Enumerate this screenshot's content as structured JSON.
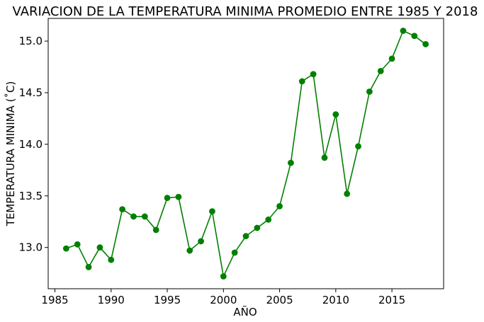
{
  "chart_data": {
    "type": "line",
    "title": "VARIACION DE LA TEMPERATURA MINIMA PROMEDIO ENTRE 1985 Y 2018",
    "xlabel": "AÑO",
    "ylabel": "TEMPERATURA MINIMA (˚C)",
    "xlim": [
      1984.4,
      2019.6
    ],
    "ylim": [
      12.6,
      15.22
    ],
    "xticks": [
      1985,
      1990,
      1995,
      2000,
      2005,
      2010,
      2015
    ],
    "xtick_labels": [
      "1985",
      "1990",
      "1995",
      "2000",
      "2005",
      "2010",
      "2015"
    ],
    "yticks": [
      13.0,
      13.5,
      14.0,
      14.5,
      15.0
    ],
    "ytick_labels": [
      "13.0",
      "13.5",
      "14.0",
      "14.5",
      "15.0"
    ],
    "grid": false,
    "color": "#008000",
    "series": [
      {
        "x": [
          1986,
          1987,
          1988,
          1989,
          1990,
          1991,
          1992,
          1993,
          1994,
          1995,
          1996,
          1997,
          1998,
          1999,
          2000,
          2001,
          2002,
          2003,
          2004,
          2005,
          2006,
          2007,
          2008,
          2009,
          2010,
          2011,
          2012,
          2013,
          2014,
          2015,
          2016,
          2017,
          2018
        ],
        "y": [
          12.99,
          13.03,
          12.81,
          13.0,
          12.88,
          13.37,
          13.3,
          13.3,
          13.17,
          13.48,
          13.49,
          12.97,
          13.06,
          13.35,
          12.72,
          12.95,
          13.11,
          13.19,
          13.27,
          13.4,
          13.82,
          14.61,
          14.68,
          13.87,
          14.29,
          13.52,
          13.98,
          14.51,
          14.71,
          14.83,
          15.1,
          15.05,
          14.97
        ]
      }
    ]
  }
}
